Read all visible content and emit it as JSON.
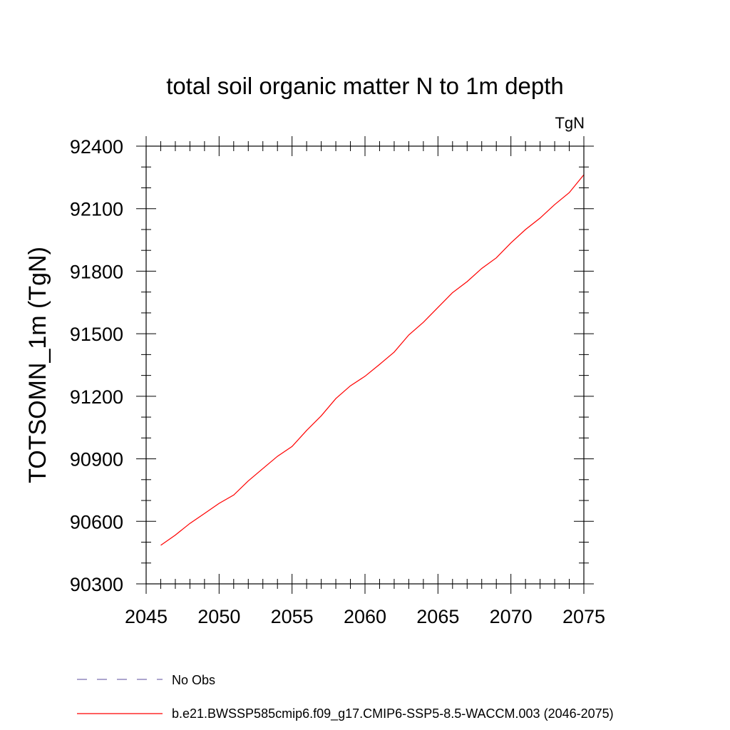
{
  "chart_data": {
    "type": "line",
    "title": "total soil organic matter N to 1m depth",
    "units": "TgN",
    "xlabel": "",
    "ylabel": "TOTSOMN_1m  (TgN)",
    "xlim": [
      2045,
      2075
    ],
    "ylim": [
      90300,
      92400
    ],
    "xticks": [
      2045,
      2050,
      2055,
      2060,
      2065,
      2070,
      2075
    ],
    "yticks": [
      90300,
      90600,
      90900,
      91200,
      91500,
      91800,
      92100,
      92400
    ],
    "grid": false,
    "legend_position": "bottom",
    "series": [
      {
        "name": "b.e21.BWSSP585cmip6.f09_g17.CMIP6-SSP5-8.5-WACCM.003 (2046-2075)",
        "color": "#ff0000",
        "style": "solid",
        "x": [
          2046,
          2047,
          2048,
          2049,
          2050,
          2051,
          2052,
          2053,
          2054,
          2055,
          2056,
          2057,
          2058,
          2059,
          2060,
          2061,
          2062,
          2063,
          2064,
          2065,
          2066,
          2067,
          2068,
          2069,
          2070,
          2071,
          2072,
          2073,
          2074,
          2075
        ],
        "y": [
          90485,
          90534,
          90590,
          90638,
          90686,
          90726,
          90794,
          90853,
          90912,
          90959,
          91036,
          91106,
          91189,
          91250,
          91296,
          91353,
          91412,
          91494,
          91555,
          91626,
          91697,
          91750,
          91813,
          91864,
          91936,
          92000,
          92055,
          92120,
          92177,
          92263
        ]
      },
      {
        "name": "No Obs",
        "color": "#7b6fb0",
        "style": "dashed",
        "x": [],
        "y": []
      }
    ]
  }
}
